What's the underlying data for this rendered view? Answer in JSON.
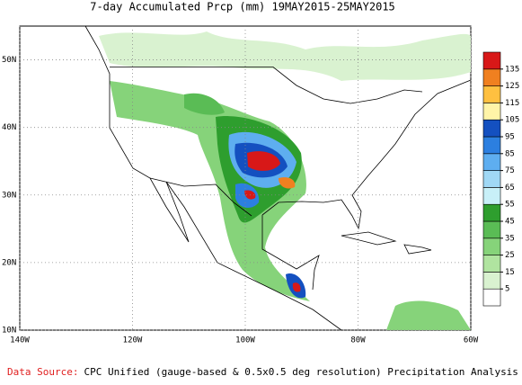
{
  "title": "7-day Accumulated Prcp (mm) 19MAY2015-25MAY2015",
  "map": {
    "lon_range": [
      -140,
      -60
    ],
    "lat_range": [
      10,
      55
    ],
    "lon_ticks": [
      {
        "value": -140,
        "label": "140W"
      },
      {
        "value": -120,
        "label": "120W"
      },
      {
        "value": -100,
        "label": "100W"
      },
      {
        "value": -80,
        "label": "80W"
      },
      {
        "value": -60,
        "label": "60W"
      }
    ],
    "lat_ticks": [
      {
        "value": 10,
        "label": "10N"
      },
      {
        "value": 20,
        "label": "20N"
      },
      {
        "value": 30,
        "label": "30N"
      },
      {
        "value": 40,
        "label": "40N"
      },
      {
        "value": 50,
        "label": "50N"
      }
    ]
  },
  "legend": {
    "levels": [
      5,
      15,
      25,
      35,
      45,
      55,
      65,
      75,
      85,
      95,
      105,
      115,
      125,
      135
    ],
    "colors": [
      "#ffffff",
      "#d9f2d0",
      "#b0e4a0",
      "#86d37a",
      "#5abc55",
      "#2e9e2e",
      "#c8f0f8",
      "#a0d8f5",
      "#5eaef0",
      "#2c7fe0",
      "#1450c0",
      "#fff4a8",
      "#ffc040",
      "#f08020",
      "#d81818"
    ]
  },
  "footer": {
    "label": "Data Source:",
    "text": "CPC Unified (gauge-based & 0.5x0.5 deg resolution) Precipitation Analysis"
  }
}
